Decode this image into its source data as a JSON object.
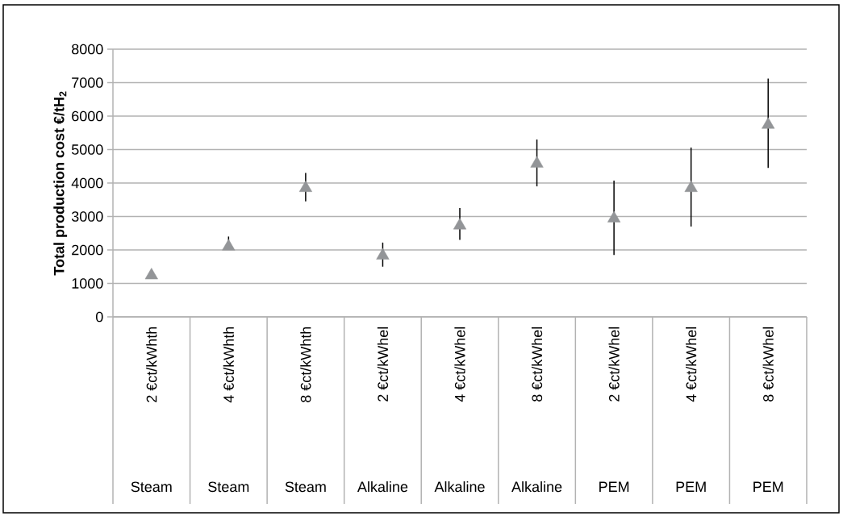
{
  "chart_data": {
    "type": "scatter",
    "ylabel": "Total production cost €/tH$_{2}$",
    "categories": [
      "2 €ct/kWhth",
      "4 €ct/kWhth",
      "8 €ct/kWhth",
      "2 €ct/kWhel",
      "4 €ct/kWhel",
      "8 €ct/kWhel",
      "2 €ct/kWhel",
      "4 €ct/kWhel",
      "8 €ct/kWhel"
    ],
    "values": [
      1240,
      2100,
      3850,
      1830,
      2730,
      4580,
      2940,
      3850,
      5740
    ],
    "errors": [
      null,
      [
        2100,
        2400
      ],
      [
        3450,
        4300
      ],
      [
        1500,
        2220
      ],
      [
        2300,
        3250
      ],
      [
        3900,
        5300
      ],
      [
        1850,
        4070
      ],
      [
        2700,
        5060
      ],
      [
        4450,
        7120
      ]
    ],
    "annotations": [
      "Steam",
      "Steam",
      "Steam",
      "Alkaline",
      "Alkaline",
      "Alkaline",
      "PEM",
      "PEM",
      "PEM"
    ],
    "color": "#939598",
    "marker": "triangle",
    "ylim": [
      0,
      8000
    ],
    "yticks": [
      0,
      1000,
      2000,
      3000,
      4000,
      5000,
      6000,
      7000,
      8000
    ],
    "grid": "y"
  }
}
